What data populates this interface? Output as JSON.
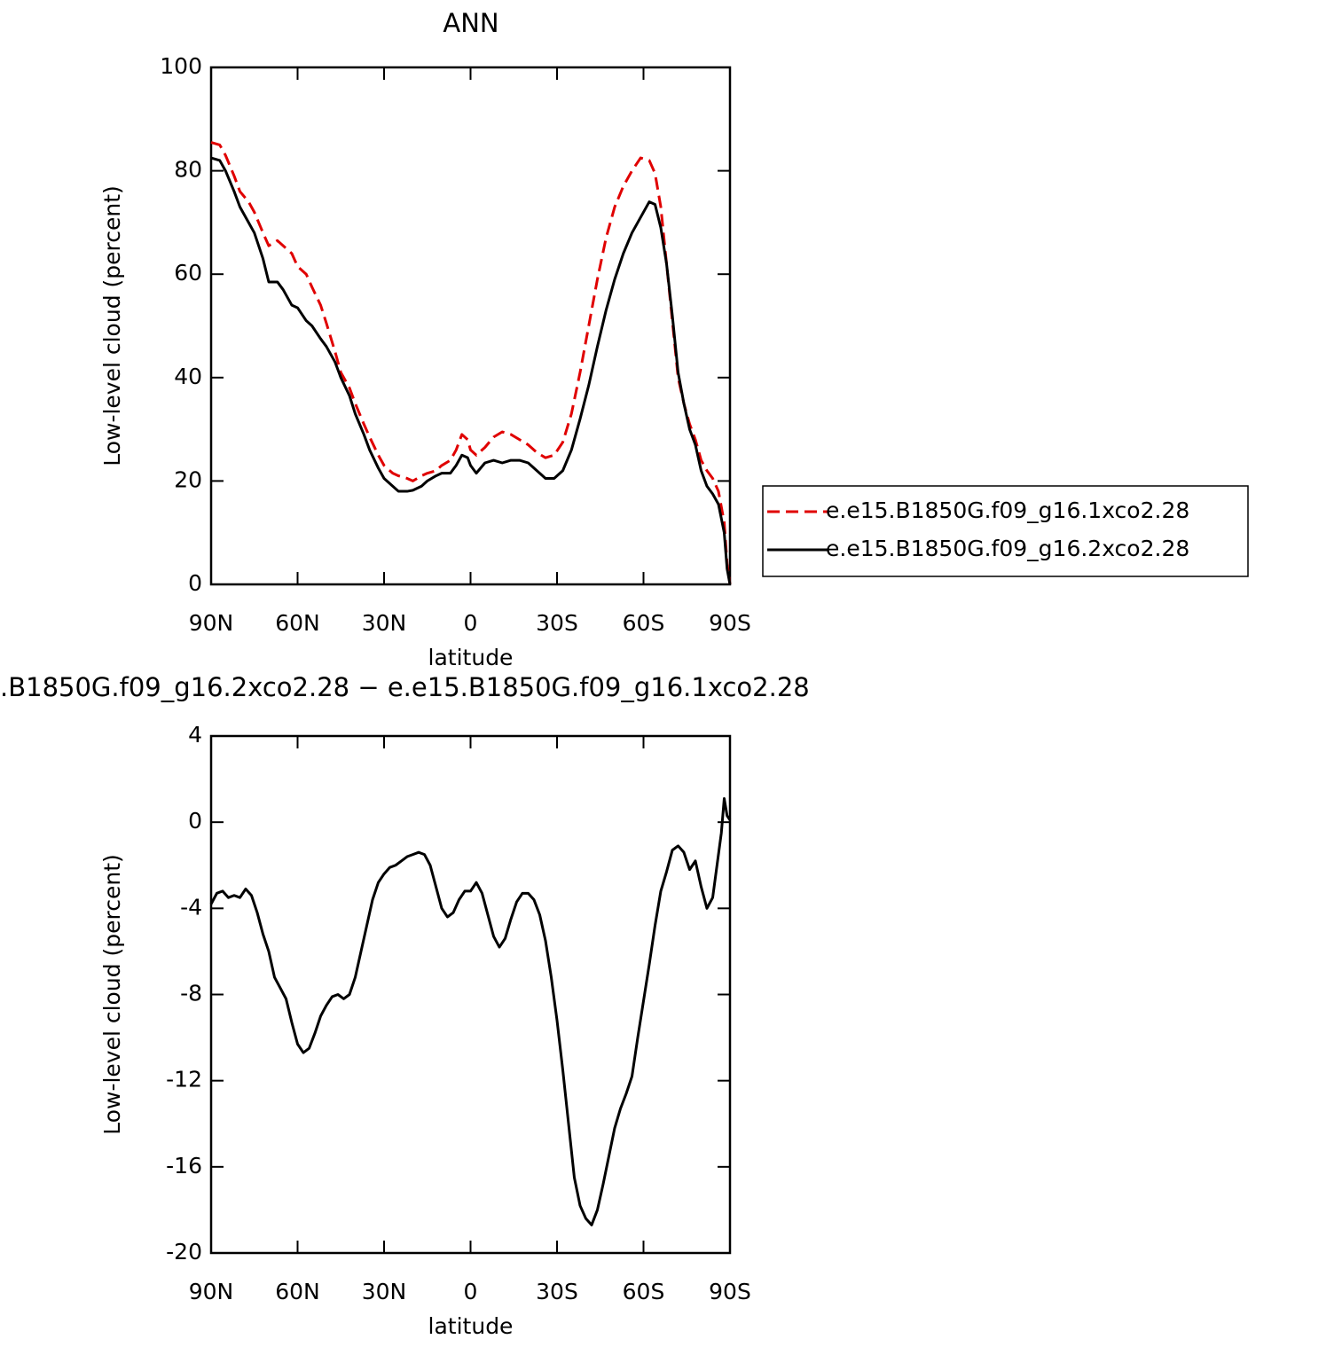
{
  "chart_data": [
    {
      "type": "line",
      "title": "ANN",
      "xlabel": "latitude",
      "ylabel": "Low-level cloud (percent)",
      "xlim": [
        90,
        -90
      ],
      "xticks": [
        {
          "value": 90,
          "label": "90N"
        },
        {
          "value": 60,
          "label": "60N"
        },
        {
          "value": 30,
          "label": "30N"
        },
        0,
        {
          "value": -30,
          "label": "30S"
        },
        {
          "value": -60,
          "label": "60S"
        },
        {
          "value": -90,
          "label": "90S"
        }
      ],
      "ylim": [
        0,
        100
      ],
      "yticks": [
        0,
        20,
        40,
        60,
        80,
        100
      ],
      "legend": "right",
      "x": [
        90,
        87,
        85,
        82,
        80,
        77,
        75,
        72,
        70,
        67,
        65,
        62,
        60,
        57,
        55,
        52,
        50,
        47,
        45,
        42,
        40,
        37,
        35,
        32,
        30,
        27,
        25,
        22,
        20,
        17,
        15,
        12,
        10,
        7,
        5,
        3,
        1,
        0,
        -2,
        -5,
        -8,
        -11,
        -14,
        -17,
        -20,
        -23,
        -26,
        -29,
        -32,
        -35,
        -38,
        -41,
        -44,
        -47,
        -50,
        -53,
        -56,
        -59,
        -62,
        -64,
        -66,
        -68,
        -70,
        -72,
        -74,
        -76,
        -78,
        -80,
        -82,
        -84,
        -86,
        -88,
        -89,
        -90
      ],
      "series": [
        {
          "name": "e.e15.B1850G.f09_g16.1xco2.28",
          "color": "#e00000",
          "style": "dashed",
          "values": [
            85.5,
            85,
            83,
            79,
            76,
            74,
            72,
            68,
            65.5,
            66.5,
            65.5,
            64,
            61.5,
            60,
            57.5,
            54,
            50.5,
            45,
            41,
            38,
            35,
            31,
            28.5,
            25,
            23,
            21.5,
            21,
            20.5,
            20,
            21,
            21.5,
            22,
            23,
            24,
            26,
            29,
            28,
            26,
            25,
            26.5,
            28.5,
            29.5,
            29,
            28,
            27,
            25.5,
            24.5,
            25,
            27.5,
            33,
            41,
            50,
            59,
            67,
            73,
            77,
            80,
            82.5,
            82,
            79.5,
            73,
            62,
            51,
            40,
            35,
            31,
            28,
            24,
            22,
            20.5,
            18,
            12,
            4,
            0
          ]
        },
        {
          "name": "e.e15.B1850G.f09_g16.2xco2.28",
          "color": "#000000",
          "style": "solid",
          "values": [
            82.5,
            82,
            80,
            76,
            73,
            70,
            68,
            63,
            58.5,
            58.5,
            57,
            54,
            53.5,
            51,
            50,
            47.5,
            46,
            43,
            40,
            36.5,
            33,
            29,
            26,
            22.5,
            20.5,
            19,
            18,
            18,
            18.2,
            19,
            20,
            21,
            21.5,
            21.5,
            23,
            25,
            24.5,
            23,
            21.5,
            23.5,
            24,
            23.5,
            24,
            24,
            23.5,
            22,
            20.5,
            20.5,
            22,
            26,
            32,
            38.5,
            46,
            53,
            59,
            64,
            68,
            71,
            74,
            73.5,
            69,
            62,
            52,
            41,
            35,
            30,
            27,
            22,
            19,
            17.5,
            15.5,
            10,
            3,
            0
          ]
        }
      ]
    },
    {
      "type": "line",
      "title": ".B1850G.f09_g16.2xco2.28 − e.e15.B1850G.f09_g16.1xco2.28",
      "xlabel": "latitude",
      "ylabel": "Low-level cloud (percent)",
      "xlim": [
        90,
        -90
      ],
      "xticks": [
        {
          "value": 90,
          "label": "90N"
        },
        {
          "value": 60,
          "label": "60N"
        },
        {
          "value": 30,
          "label": "30N"
        },
        0,
        {
          "value": -30,
          "label": "30S"
        },
        {
          "value": -60,
          "label": "60S"
        },
        {
          "value": -90,
          "label": "90S"
        }
      ],
      "ylim": [
        -20,
        4
      ],
      "yticks": [
        -20,
        -16,
        -12,
        -8,
        -4,
        0,
        4
      ],
      "x": [
        90,
        88,
        86,
        84,
        82,
        80,
        78,
        76,
        74,
        72,
        70,
        68,
        66,
        64,
        62,
        60,
        58,
        56,
        54,
        52,
        50,
        48,
        46,
        44,
        42,
        40,
        38,
        36,
        34,
        32,
        30,
        28,
        26,
        24,
        22,
        20,
        18,
        16,
        14,
        12,
        10,
        8,
        6,
        4,
        2,
        0,
        -2,
        -4,
        -6,
        -8,
        -10,
        -12,
        -14,
        -16,
        -18,
        -20,
        -22,
        -24,
        -26,
        -28,
        -30,
        -32,
        -34,
        -36,
        -38,
        -40,
        -42,
        -44,
        -46,
        -48,
        -50,
        -52,
        -54,
        -56,
        -58,
        -60,
        -62,
        -64,
        -66,
        -68,
        -70,
        -72,
        -74,
        -76,
        -78,
        -80,
        -82,
        -84,
        -86,
        -87,
        -88,
        -89,
        -90
      ],
      "series": [
        {
          "color": "#000000",
          "style": "solid",
          "values": [
            -3.8,
            -3.3,
            -3.2,
            -3.5,
            -3.4,
            -3.5,
            -3.1,
            -3.4,
            -4.2,
            -5.2,
            -6,
            -7.2,
            -7.7,
            -8.2,
            -9.3,
            -10.3,
            -10.7,
            -10.5,
            -9.8,
            -9,
            -8.5,
            -8.1,
            -8,
            -8.2,
            -8,
            -7.2,
            -6,
            -4.8,
            -3.6,
            -2.8,
            -2.4,
            -2.1,
            -2,
            -1.8,
            -1.6,
            -1.5,
            -1.4,
            -1.5,
            -2,
            -3,
            -4,
            -4.4,
            -4.2,
            -3.6,
            -3.2,
            -3.2,
            -2.8,
            -3.3,
            -4.3,
            -5.3,
            -5.8,
            -5.4,
            -4.5,
            -3.7,
            -3.3,
            -3.3,
            -3.6,
            -4.3,
            -5.5,
            -7.2,
            -9.2,
            -11.5,
            -14,
            -16.5,
            -17.8,
            -18.4,
            -18.7,
            -18,
            -16.8,
            -15.5,
            -14.2,
            -13.3,
            -12.6,
            -11.8,
            -10,
            -8.3,
            -6.6,
            -4.8,
            -3.2,
            -2.3,
            -1.3,
            -1.1,
            -1.4,
            -2.2,
            -1.8,
            -3,
            -4,
            -3.5,
            -1.5,
            -0.5,
            1.1,
            0.3,
            0.1
          ]
        }
      ]
    }
  ]
}
